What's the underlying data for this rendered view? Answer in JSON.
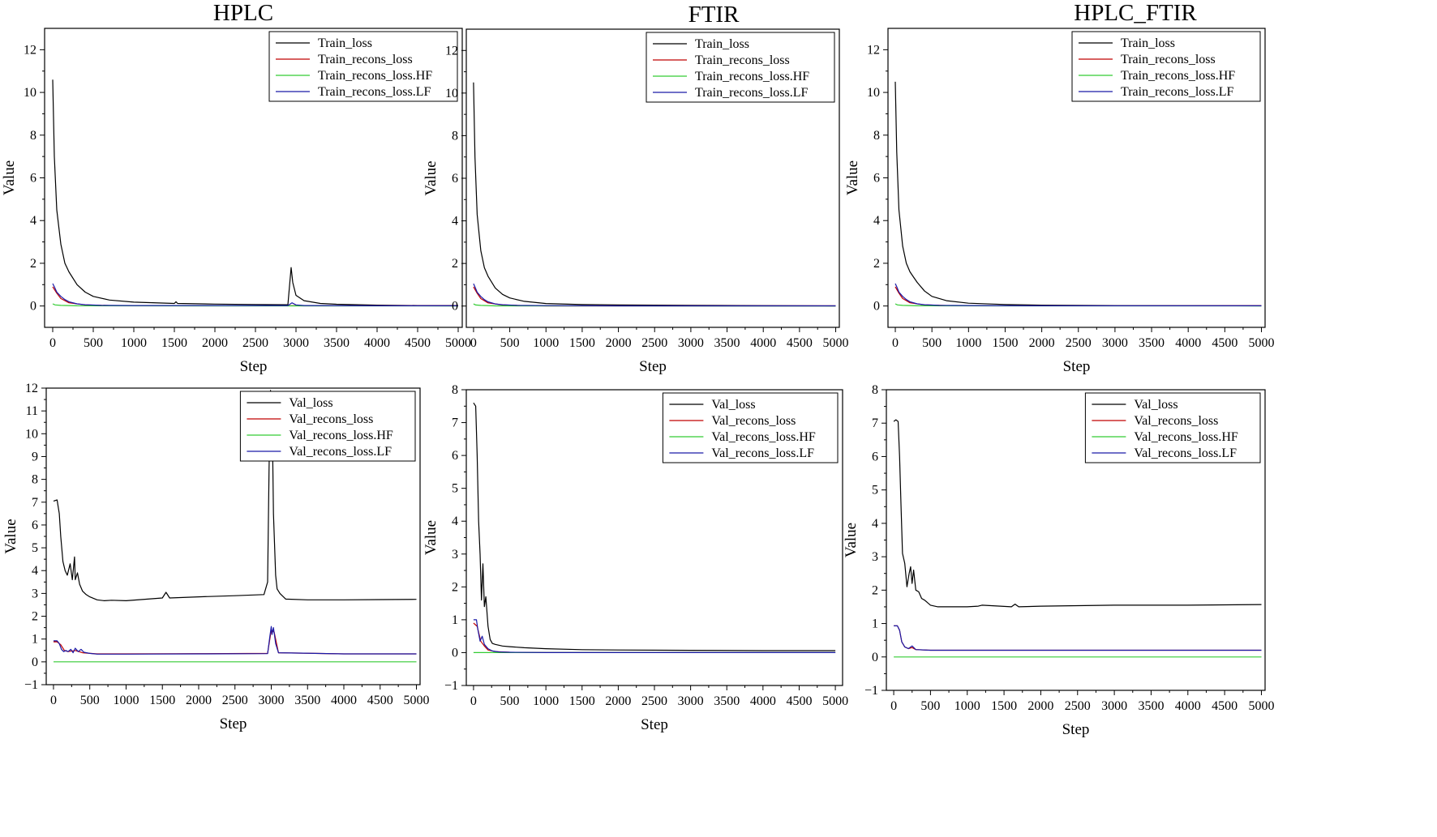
{
  "figure": {
    "column_titles": [
      "HPLC",
      "FTIR",
      "HPLC_FTIR"
    ]
  },
  "colors": {
    "loss": "#000000",
    "recons": "#c00000",
    "hf": "#33cc33",
    "lf": "#1a1aa8"
  },
  "chart_data": [
    {
      "type": "line",
      "title": "HPLC",
      "xlabel": "Step",
      "ylabel": "Value",
      "xlim": [
        -100,
        5050
      ],
      "ylim": [
        -1,
        13
      ],
      "xticks": [
        0,
        500,
        1000,
        1500,
        2000,
        2500,
        3000,
        3500,
        4000,
        4500,
        5000
      ],
      "yticks": [
        0,
        2,
        4,
        6,
        8,
        10,
        12
      ],
      "legend_position": "top-right",
      "series": [
        {
          "name": "Train_loss",
          "color_key": "loss",
          "x": [
            0,
            20,
            50,
            100,
            150,
            200,
            300,
            400,
            500,
            700,
            1000,
            1500,
            1520,
            1540,
            2000,
            2500,
            2900,
            2940,
            2960,
            3000,
            3100,
            3300,
            3500,
            4000,
            4500,
            5000
          ],
          "y": [
            10.6,
            7.0,
            4.5,
            2.9,
            2.0,
            1.6,
            1.0,
            0.65,
            0.45,
            0.28,
            0.18,
            0.12,
            0.2,
            0.12,
            0.09,
            0.07,
            0.06,
            1.8,
            1.1,
            0.5,
            0.25,
            0.12,
            0.08,
            0.04,
            0.02,
            0.02
          ]
        },
        {
          "name": "Train_recons_loss",
          "color_key": "recons",
          "x": [
            0,
            50,
            100,
            200,
            400,
            700,
            1000,
            2000,
            5000
          ],
          "y": [
            0.9,
            0.6,
            0.35,
            0.15,
            0.05,
            0.02,
            0.01,
            0.01,
            0.01
          ]
        },
        {
          "name": "Train_recons_loss.HF",
          "color_key": "hf",
          "x": [
            0,
            30,
            100,
            300,
            5000
          ],
          "y": [
            0.1,
            0.05,
            0.03,
            0.01,
            0.0
          ]
        },
        {
          "name": "Train_recons_loss.LF",
          "color_key": "lf",
          "x": [
            0,
            20,
            50,
            100,
            150,
            200,
            300,
            400,
            600,
            1000,
            2000,
            2900,
            2950,
            3000,
            3100,
            4000,
            5000
          ],
          "y": [
            1.05,
            0.9,
            0.65,
            0.45,
            0.3,
            0.2,
            0.1,
            0.06,
            0.03,
            0.02,
            0.02,
            0.02,
            0.15,
            0.05,
            0.02,
            0.01,
            0.01
          ]
        }
      ]
    },
    {
      "type": "line",
      "title": "FTIR",
      "xlabel": "Step",
      "ylabel": "Value",
      "xlim": [
        -100,
        5050
      ],
      "ylim": [
        -1,
        13
      ],
      "xticks": [
        0,
        500,
        1000,
        1500,
        2000,
        2500,
        3000,
        3500,
        4000,
        4500,
        5000
      ],
      "yticks": [
        0,
        2,
        4,
        6,
        8,
        10,
        12
      ],
      "legend_position": "top-right",
      "series": [
        {
          "name": "Train_loss",
          "color_key": "loss",
          "x": [
            0,
            20,
            50,
            100,
            150,
            200,
            300,
            400,
            500,
            700,
            1000,
            1500,
            2000,
            3000,
            4000,
            5000
          ],
          "y": [
            10.5,
            7.0,
            4.3,
            2.6,
            1.8,
            1.4,
            0.85,
            0.55,
            0.38,
            0.22,
            0.12,
            0.07,
            0.05,
            0.03,
            0.02,
            0.01
          ]
        },
        {
          "name": "Train_recons_loss",
          "color_key": "recons",
          "x": [
            0,
            50,
            100,
            200,
            400,
            700,
            1000,
            5000
          ],
          "y": [
            0.9,
            0.6,
            0.35,
            0.15,
            0.05,
            0.02,
            0.01,
            0.01
          ]
        },
        {
          "name": "Train_recons_loss.HF",
          "color_key": "hf",
          "x": [
            0,
            30,
            100,
            300,
            5000
          ],
          "y": [
            0.1,
            0.05,
            0.03,
            0.01,
            0.0
          ]
        },
        {
          "name": "Train_recons_loss.LF",
          "color_key": "lf",
          "x": [
            0,
            20,
            50,
            100,
            150,
            200,
            300,
            400,
            600,
            1000,
            2000,
            5000
          ],
          "y": [
            1.05,
            0.9,
            0.65,
            0.45,
            0.3,
            0.2,
            0.1,
            0.06,
            0.03,
            0.02,
            0.01,
            0.01
          ]
        }
      ]
    },
    {
      "type": "line",
      "title": "HPLC_FTIR",
      "xlabel": "Step",
      "ylabel": "Value",
      "xlim": [
        -100,
        5050
      ],
      "ylim": [
        -1,
        13
      ],
      "xticks": [
        0,
        500,
        1000,
        1500,
        2000,
        2500,
        3000,
        3500,
        4000,
        4500,
        5000
      ],
      "yticks": [
        0,
        2,
        4,
        6,
        8,
        10,
        12
      ],
      "legend_position": "top-right",
      "series": [
        {
          "name": "Train_loss",
          "color_key": "loss",
          "x": [
            0,
            20,
            50,
            100,
            150,
            200,
            250,
            300,
            400,
            500,
            700,
            1000,
            1500,
            2000,
            3000,
            4000,
            5000
          ],
          "y": [
            10.5,
            7.2,
            4.5,
            2.8,
            2.0,
            1.6,
            1.35,
            1.1,
            0.7,
            0.45,
            0.25,
            0.13,
            0.07,
            0.04,
            0.02,
            0.01,
            0.01
          ]
        },
        {
          "name": "Train_recons_loss",
          "color_key": "recons",
          "x": [
            0,
            50,
            100,
            200,
            400,
            700,
            1000,
            5000
          ],
          "y": [
            0.9,
            0.6,
            0.35,
            0.15,
            0.05,
            0.02,
            0.01,
            0.01
          ]
        },
        {
          "name": "Train_recons_loss.HF",
          "color_key": "hf",
          "x": [
            0,
            30,
            100,
            300,
            5000
          ],
          "y": [
            0.1,
            0.05,
            0.03,
            0.01,
            0.0
          ]
        },
        {
          "name": "Train_recons_loss.LF",
          "color_key": "lf",
          "x": [
            0,
            20,
            50,
            100,
            150,
            200,
            300,
            400,
            600,
            1000,
            2000,
            5000
          ],
          "y": [
            1.05,
            0.9,
            0.65,
            0.45,
            0.3,
            0.2,
            0.1,
            0.06,
            0.03,
            0.02,
            0.01,
            0.01
          ]
        }
      ]
    },
    {
      "type": "line",
      "title": "",
      "xlabel": "Step",
      "ylabel": "Value",
      "xlim": [
        -100,
        5050
      ],
      "ylim": [
        -1,
        12
      ],
      "xticks": [
        0,
        500,
        1000,
        1500,
        2000,
        2500,
        3000,
        3500,
        4000,
        4500,
        5000
      ],
      "yticks": [
        -1,
        0,
        1,
        2,
        3,
        4,
        5,
        6,
        7,
        8,
        9,
        10,
        11,
        12
      ],
      "legend_position": "top-right",
      "series": [
        {
          "name": "Val_loss",
          "color_key": "loss",
          "x": [
            0,
            50,
            80,
            100,
            130,
            160,
            190,
            230,
            260,
            290,
            300,
            330,
            360,
            400,
            450,
            500,
            600,
            700,
            800,
            1000,
            1500,
            1550,
            1600,
            2000,
            2500,
            2900,
            2950,
            2970,
            2990,
            3000,
            3010,
            3030,
            3060,
            3080,
            3120,
            3200,
            3500,
            4000,
            4500,
            5000
          ],
          "y": [
            7.05,
            7.1,
            6.5,
            5.5,
            4.4,
            4.0,
            3.8,
            4.3,
            3.6,
            4.6,
            3.6,
            3.9,
            3.4,
            3.1,
            2.95,
            2.85,
            2.72,
            2.68,
            2.7,
            2.68,
            2.8,
            3.05,
            2.8,
            2.85,
            2.9,
            2.95,
            3.5,
            8.5,
            11.9,
            9.8,
            11.5,
            6.5,
            3.8,
            3.2,
            3.0,
            2.75,
            2.72,
            2.72,
            2.73,
            2.74
          ]
        },
        {
          "name": "Val_recons_loss",
          "color_key": "recons",
          "x": [
            0,
            50,
            100,
            150,
            200,
            300,
            400,
            600,
            1000,
            2000,
            2950,
            3000,
            3040,
            3100,
            4000,
            5000
          ],
          "y": [
            0.88,
            0.88,
            0.75,
            0.5,
            0.45,
            0.5,
            0.4,
            0.35,
            0.35,
            0.36,
            0.37,
            1.4,
            1.3,
            0.4,
            0.35,
            0.35
          ]
        },
        {
          "name": "Val_recons_loss.HF",
          "color_key": "hf",
          "x": [
            0,
            5000
          ],
          "y": [
            0.0,
            0.0
          ]
        },
        {
          "name": "Val_recons_loss.LF",
          "color_key": "lf",
          "x": [
            0,
            50,
            80,
            110,
            140,
            170,
            200,
            240,
            270,
            300,
            340,
            380,
            420,
            500,
            600,
            1000,
            2000,
            2950,
            2980,
            3000,
            3010,
            3030,
            3060,
            3100,
            4000,
            5000
          ],
          "y": [
            0.92,
            0.92,
            0.8,
            0.55,
            0.45,
            0.5,
            0.45,
            0.55,
            0.4,
            0.6,
            0.45,
            0.55,
            0.42,
            0.37,
            0.34,
            0.34,
            0.35,
            0.36,
            1.1,
            1.55,
            1.2,
            1.5,
            0.8,
            0.4,
            0.35,
            0.35
          ]
        }
      ]
    },
    {
      "type": "line",
      "title": "",
      "xlabel": "Step",
      "ylabel": "Value",
      "xlim": [
        -100,
        5100
      ],
      "ylim": [
        -1,
        8
      ],
      "xticks": [
        0,
        500,
        1000,
        1500,
        2000,
        2500,
        3000,
        3500,
        4000,
        4500,
        5000
      ],
      "yticks": [
        -1,
        0,
        1,
        2,
        3,
        4,
        5,
        6,
        7,
        8
      ],
      "legend_position": "top-right",
      "series": [
        {
          "name": "Val_loss",
          "color_key": "loss",
          "x": [
            0,
            30,
            50,
            70,
            90,
            110,
            130,
            150,
            170,
            200,
            230,
            260,
            300,
            400,
            500,
            700,
            1000,
            1500,
            2000,
            3000,
            4000,
            5000
          ],
          "y": [
            7.6,
            7.5,
            6.0,
            4.0,
            3.0,
            1.6,
            2.7,
            1.4,
            1.7,
            0.8,
            0.4,
            0.28,
            0.25,
            0.2,
            0.18,
            0.15,
            0.12,
            0.09,
            0.08,
            0.07,
            0.06,
            0.06
          ]
        },
        {
          "name": "Val_recons_loss",
          "color_key": "recons",
          "x": [
            0,
            50,
            100,
            150,
            200,
            300,
            500,
            1000,
            5000
          ],
          "y": [
            0.9,
            0.8,
            0.35,
            0.2,
            0.08,
            0.03,
            0.01,
            0.0,
            0.0
          ]
        },
        {
          "name": "Val_recons_loss.HF",
          "color_key": "hf",
          "x": [
            0,
            5000
          ],
          "y": [
            0.0,
            0.0
          ]
        },
        {
          "name": "Val_recons_loss.LF",
          "color_key": "lf",
          "x": [
            0,
            40,
            60,
            90,
            120,
            150,
            200,
            260,
            350,
            500,
            1000,
            5000
          ],
          "y": [
            1.0,
            1.0,
            0.7,
            0.35,
            0.5,
            0.25,
            0.12,
            0.05,
            0.02,
            0.01,
            0.0,
            0.0
          ]
        }
      ]
    },
    {
      "type": "line",
      "title": "",
      "xlabel": "Step",
      "ylabel": "Value",
      "xlim": [
        -100,
        5050
      ],
      "ylim": [
        -1,
        8
      ],
      "xticks": [
        0,
        500,
        1000,
        1500,
        2000,
        2500,
        3000,
        3500,
        4000,
        4500,
        5000
      ],
      "yticks": [
        -1,
        0,
        1,
        2,
        3,
        4,
        5,
        6,
        7,
        8
      ],
      "legend_position": "top-right",
      "series": [
        {
          "name": "Val_loss",
          "color_key": "loss",
          "x": [
            0,
            30,
            60,
            80,
            100,
            120,
            150,
            180,
            210,
            230,
            250,
            270,
            300,
            340,
            380,
            420,
            500,
            600,
            800,
            1000,
            1150,
            1200,
            1600,
            1650,
            1700,
            2000,
            3000,
            4000,
            5000
          ],
          "y": [
            7.05,
            7.1,
            7.05,
            6.0,
            4.5,
            3.1,
            2.8,
            2.1,
            2.5,
            2.7,
            2.2,
            2.6,
            2.0,
            1.95,
            1.75,
            1.7,
            1.55,
            1.5,
            1.5,
            1.5,
            1.52,
            1.55,
            1.5,
            1.58,
            1.5,
            1.52,
            1.55,
            1.55,
            1.57
          ]
        },
        {
          "name": "Val_recons_loss",
          "color_key": "recons",
          "x": [
            0,
            50,
            80,
            110,
            150,
            200,
            250,
            300,
            500,
            1000,
            3000,
            5000
          ],
          "y": [
            0.93,
            0.93,
            0.8,
            0.45,
            0.3,
            0.25,
            0.28,
            0.22,
            0.2,
            0.2,
            0.2,
            0.2
          ]
        },
        {
          "name": "Val_recons_loss.HF",
          "color_key": "hf",
          "x": [
            0,
            5000
          ],
          "y": [
            0.0,
            0.0
          ]
        },
        {
          "name": "Val_recons_loss.LF",
          "color_key": "lf",
          "x": [
            0,
            50,
            80,
            110,
            150,
            200,
            250,
            300,
            500,
            1000,
            3000,
            5000
          ],
          "y": [
            0.93,
            0.93,
            0.8,
            0.45,
            0.3,
            0.25,
            0.33,
            0.22,
            0.2,
            0.2,
            0.2,
            0.2
          ]
        }
      ]
    }
  ]
}
